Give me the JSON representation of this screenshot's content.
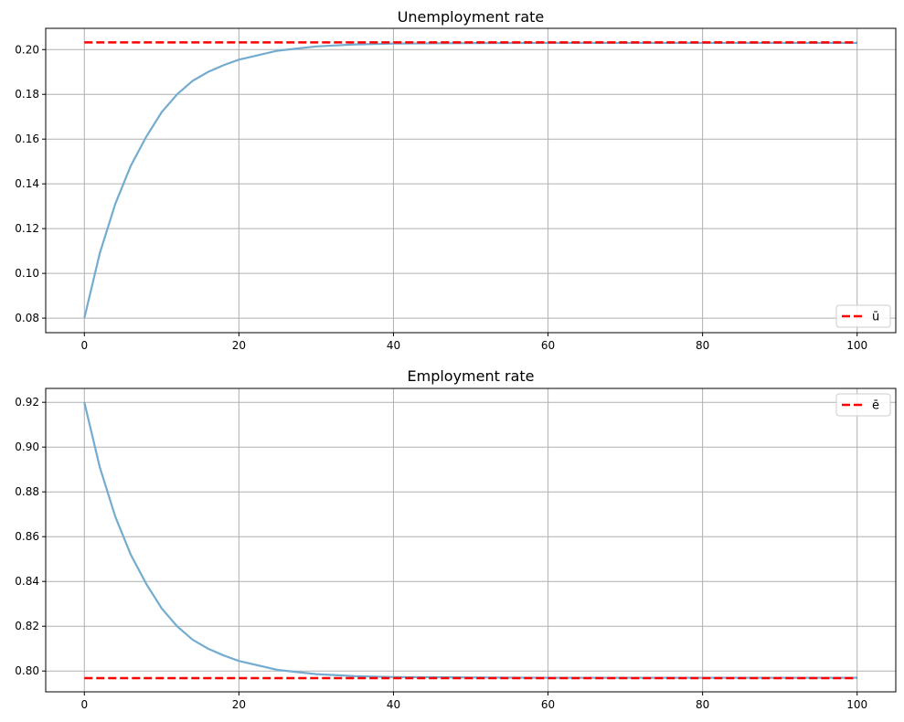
{
  "chart_data": [
    {
      "type": "line",
      "title": "Unemployment rate",
      "xlabel": "",
      "ylabel": "",
      "xlim": [
        -5,
        105
      ],
      "ylim": [
        0.0735,
        0.2095
      ],
      "xticks": [
        0,
        20,
        40,
        60,
        80,
        100
      ],
      "xtick_labels": [
        "0",
        "20",
        "40",
        "60",
        "80",
        "100"
      ],
      "yticks": [
        0.08,
        0.1,
        0.12,
        0.14,
        0.16,
        0.18,
        0.2
      ],
      "ytick_labels": [
        "0.08",
        "0.10",
        "0.12",
        "0.14",
        "0.16",
        "0.18",
        "0.20"
      ],
      "grid": true,
      "legend_position": "lower-right",
      "series": [
        {
          "kind": "curve",
          "color": "#74acd0",
          "x": [
            0,
            2,
            4,
            6,
            8,
            10,
            12,
            14,
            16,
            18,
            20,
            25,
            30,
            35,
            40,
            50,
            60,
            70,
            80,
            90,
            100
          ],
          "values": [
            0.08,
            0.109,
            0.131,
            0.148,
            0.161,
            0.172,
            0.18,
            0.186,
            0.19,
            0.193,
            0.1955,
            0.1995,
            0.2014,
            0.2023,
            0.2027,
            0.2029,
            0.203,
            0.203,
            0.203,
            0.203,
            0.203
          ]
        },
        {
          "kind": "steady-state",
          "name": "ū",
          "color": "#ff0000",
          "dashed": true,
          "x": [
            0,
            100
          ],
          "values": [
            0.2032,
            0.2032
          ]
        }
      ]
    },
    {
      "type": "line",
      "title": "Employment rate",
      "xlabel": "",
      "ylabel": "",
      "xlim": [
        -5,
        105
      ],
      "ylim": [
        0.7907,
        0.9262
      ],
      "xticks": [
        0,
        20,
        40,
        60,
        80,
        100
      ],
      "xtick_labels": [
        "0",
        "20",
        "40",
        "60",
        "80",
        "100"
      ],
      "yticks": [
        0.8,
        0.82,
        0.84,
        0.86,
        0.88,
        0.9,
        0.92
      ],
      "ytick_labels": [
        "0.80",
        "0.82",
        "0.84",
        "0.86",
        "0.88",
        "0.90",
        "0.92"
      ],
      "grid": true,
      "legend_position": "upper-right",
      "series": [
        {
          "kind": "curve",
          "color": "#74acd0",
          "x": [
            0,
            2,
            4,
            6,
            8,
            10,
            12,
            14,
            16,
            18,
            20,
            25,
            30,
            35,
            40,
            50,
            60,
            70,
            80,
            90,
            100
          ],
          "values": [
            0.92,
            0.891,
            0.869,
            0.852,
            0.839,
            0.828,
            0.82,
            0.814,
            0.81,
            0.807,
            0.8045,
            0.8005,
            0.7986,
            0.7977,
            0.7973,
            0.7971,
            0.797,
            0.797,
            0.797,
            0.797,
            0.797
          ]
        },
        {
          "kind": "steady-state",
          "name": "ē",
          "color": "#ff0000",
          "dashed": true,
          "x": [
            0,
            100
          ],
          "values": [
            0.7968,
            0.7968
          ]
        }
      ]
    }
  ]
}
